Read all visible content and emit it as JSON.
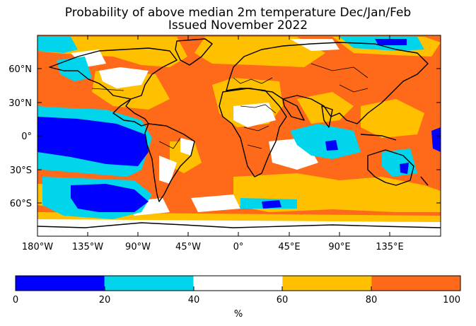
{
  "title_line1": "Probability of above median 2m temperature Dec/Jan/Feb",
  "title_line2": "Issued November 2022",
  "lat_labels": [
    "60°N",
    "30°N",
    "0°",
    "30°S",
    "60°S"
  ],
  "lon_labels": [
    "180°W",
    "135°W",
    "90°W",
    "45°W",
    "0°",
    "45°E",
    "90°E",
    "135°E"
  ],
  "colorbar": {
    "unit": "%",
    "ticks": [
      "0",
      "20",
      "40",
      "60",
      "80",
      "100"
    ],
    "bins": [
      {
        "from": 0,
        "to": 20,
        "color": "#0000ff"
      },
      {
        "from": 20,
        "to": 40,
        "color": "#00d5ec"
      },
      {
        "from": 40,
        "to": 60,
        "color": "#ffffff"
      },
      {
        "from": 60,
        "to": 80,
        "color": "#ffc000"
      },
      {
        "from": 80,
        "to": 100,
        "color": "#ff6a1a"
      }
    ]
  }
}
